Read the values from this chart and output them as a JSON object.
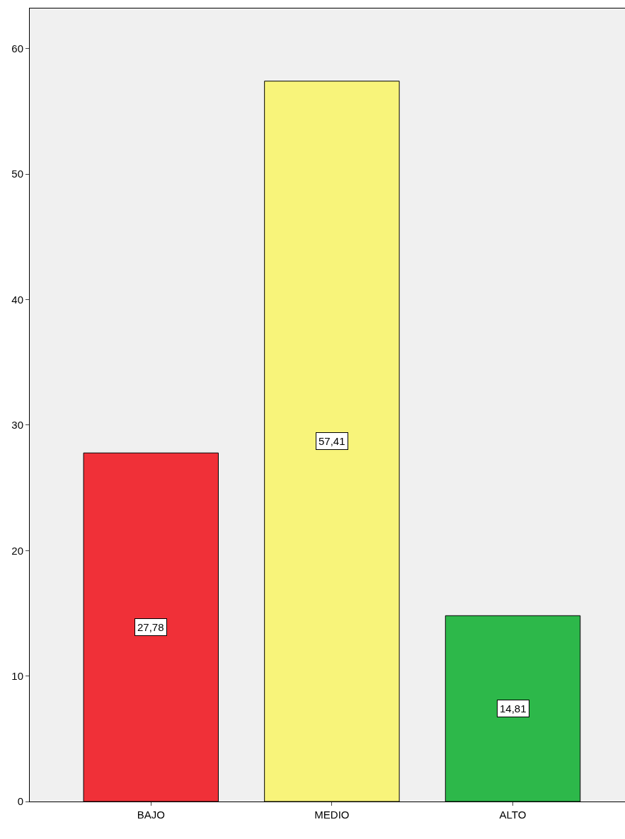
{
  "chart_data": {
    "type": "bar",
    "categories": [
      "BAJO",
      "MEDIO",
      "ALTO"
    ],
    "values": [
      27.78,
      57.41,
      14.81
    ],
    "colors": [
      "#f03038",
      "#f8f47a",
      "#2db84a"
    ],
    "value_labels": [
      "27,78",
      "57,41",
      "14,81"
    ],
    "ylim": [
      0,
      63.2
    ],
    "yticks": [
      0,
      10,
      20,
      30,
      40,
      50,
      60
    ],
    "grid": false
  }
}
